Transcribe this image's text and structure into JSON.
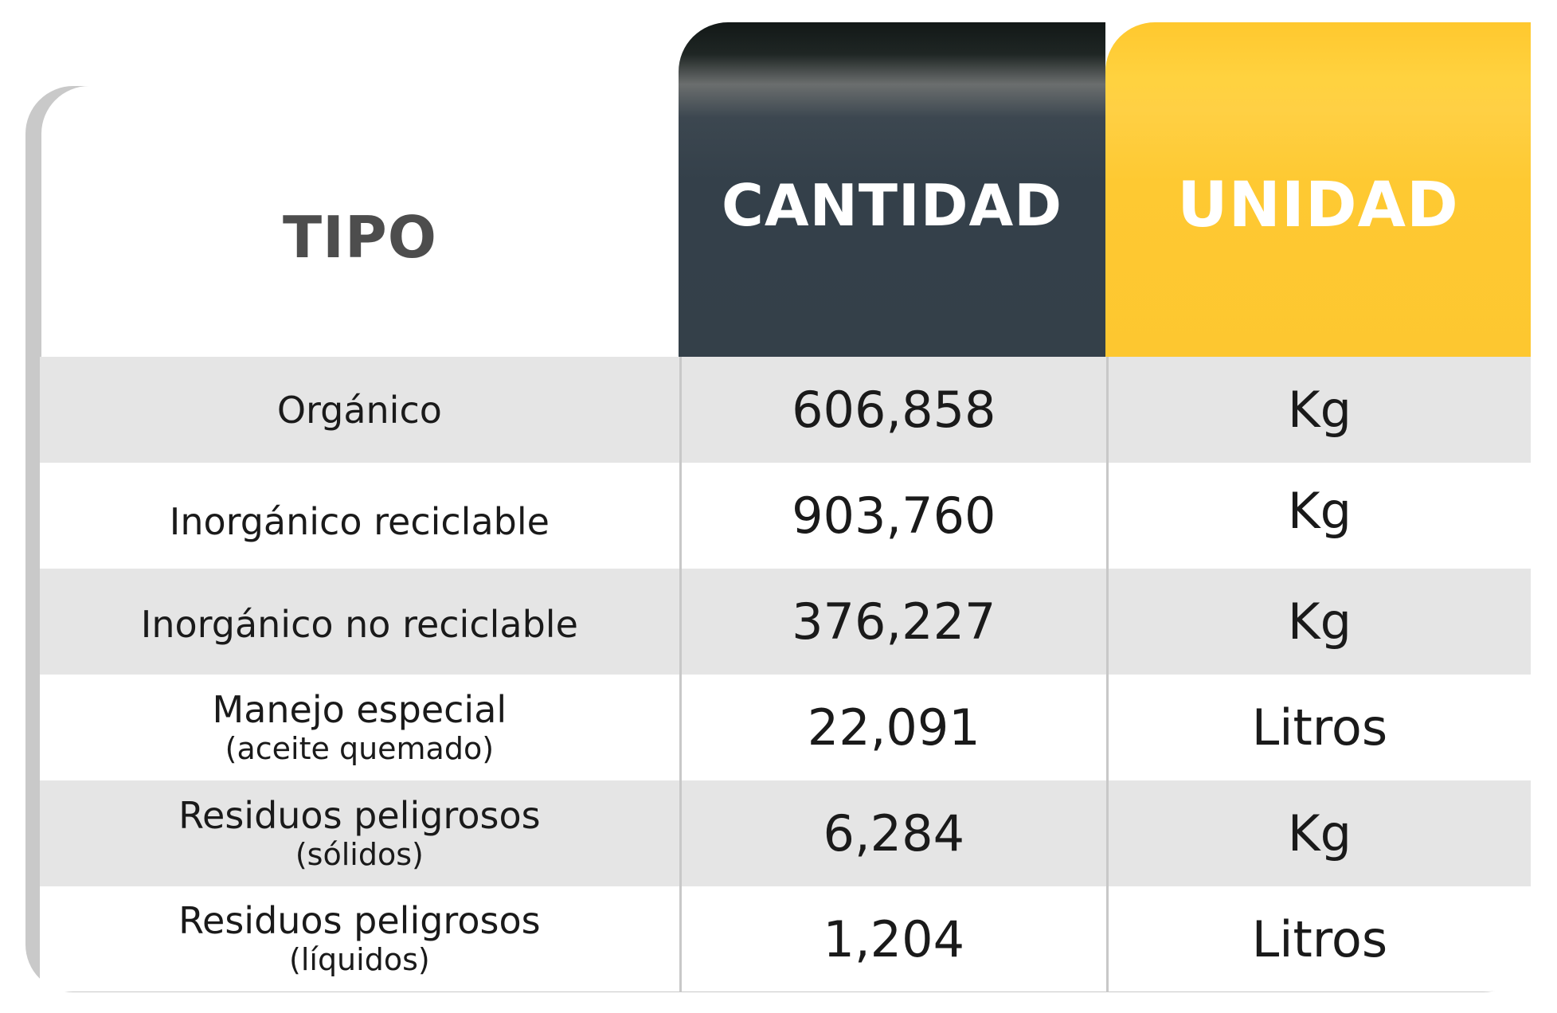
{
  "headers": {
    "tipo": "TIPO",
    "cantidad": "CANTIDAD",
    "unidad": "UNIDAD"
  },
  "colors": {
    "cantidad_header": "#344049",
    "unidad_header": "#fdc730",
    "row_gray": "#e5e5e5",
    "tipo_text": "#4d4d4d"
  },
  "rows": [
    {
      "tipo": "Orgánico",
      "tipo_sub": "",
      "cantidad": "606,858",
      "unidad": "Kg"
    },
    {
      "tipo": "Inorgánico reciclable",
      "tipo_sub": "",
      "cantidad": "903,760",
      "unidad": "Kg"
    },
    {
      "tipo": "Inorgánico no reciclable",
      "tipo_sub": "",
      "cantidad": "376,227",
      "unidad": "Kg"
    },
    {
      "tipo": "Manejo especial",
      "tipo_sub": "(aceite quemado)",
      "cantidad": "22,091",
      "unidad": "Litros"
    },
    {
      "tipo": "Residuos peligrosos",
      "tipo_sub": "(sólidos)",
      "cantidad": "6,284",
      "unidad": "Kg"
    },
    {
      "tipo": "Residuos peligrosos",
      "tipo_sub": "(líquidos)",
      "cantidad": "1,204",
      "unidad": "Litros"
    }
  ]
}
